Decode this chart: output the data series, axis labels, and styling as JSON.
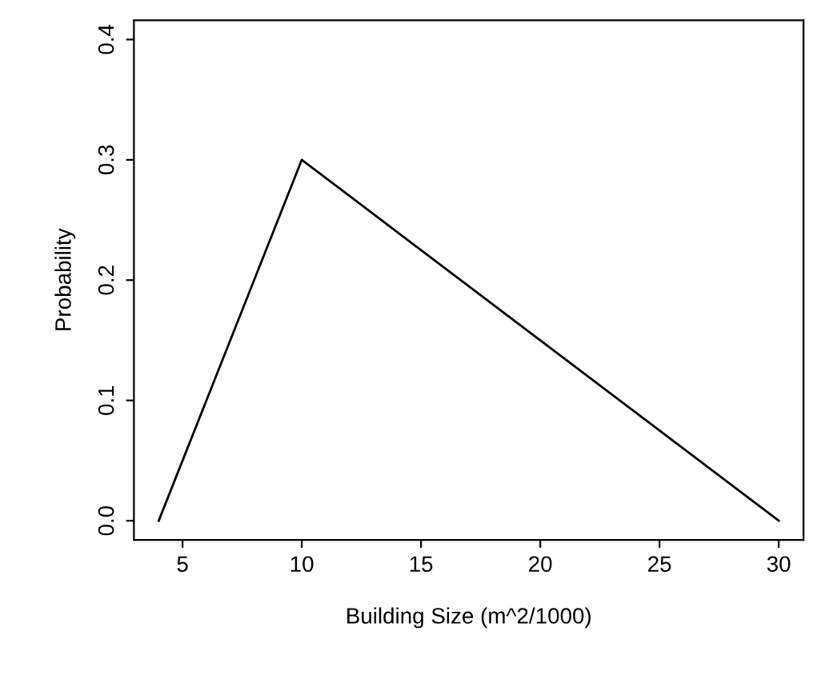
{
  "chart_data": {
    "type": "line",
    "xlabel": "Building Size (m^2/1000)",
    "ylabel": "Probability",
    "x": [
      4,
      10,
      30
    ],
    "series": [
      {
        "color": "#000000",
        "values": [
          0,
          0.3,
          0
        ]
      }
    ],
    "xlim": [
      2.96,
      31.04
    ],
    "xticks": [
      5,
      10,
      15,
      20,
      25,
      30
    ],
    "ylim": [
      -0.016,
      0.416
    ],
    "yticks": [
      {
        "value": 0,
        "label": "0.0"
      },
      0.1,
      0.2,
      0.3,
      0.4
    ],
    "grid": false,
    "legend": false,
    "marker": "none",
    "line_style": "solid"
  }
}
